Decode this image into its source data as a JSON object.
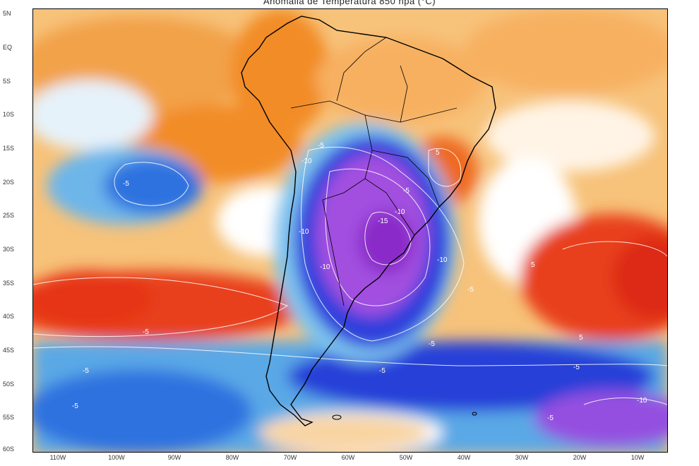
{
  "title": "Anomalia de Temperatura 850 hpa (°C)",
  "lat_labels": [
    "5N",
    "EQ",
    "5S",
    "10S",
    "15S",
    "20S",
    "25S",
    "30S",
    "35S",
    "40S",
    "45S",
    "50S",
    "55S",
    "60S"
  ],
  "lon_labels": [
    "110W",
    "100W",
    "90W",
    "80W",
    "70W",
    "60W",
    "50W",
    "40W",
    "30W",
    "20W",
    "10W"
  ],
  "contour_labels": [
    "-5",
    "-10",
    "-5",
    "-10",
    "-15",
    "-10",
    "-10",
    "-10",
    "-5",
    "-5",
    "-5",
    "-5",
    "-5",
    "-5",
    "-5",
    "5",
    "5",
    "5",
    "-5",
    "-10",
    "-5"
  ],
  "colors": {
    "strong_warm": "#e8401a",
    "warm": "#f28c28",
    "light_warm": "#f7c27a",
    "neutral": "#ffffff",
    "light_cold": "#a8dcf2",
    "cold": "#3a8fe0",
    "strong_cold": "#2533d6",
    "very_strong_cold": "#b050e0"
  }
}
